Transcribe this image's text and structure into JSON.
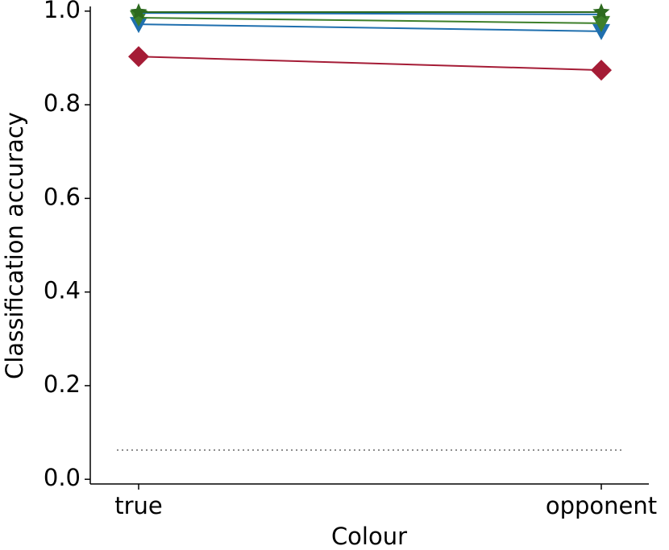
{
  "chart_data": {
    "type": "line",
    "xlabel": "Colour",
    "ylabel": "Classification accuracy",
    "categories": [
      "true",
      "opponent"
    ],
    "series": [
      {
        "color": "#a51c36",
        "marker": "diamond",
        "values": [
          0.903,
          0.874
        ]
      },
      {
        "color": "#1f6fae",
        "marker": "triangle-down",
        "values": [
          0.972,
          0.957
        ]
      },
      {
        "color": "#3d7f2a",
        "marker": "triangle-down",
        "values": [
          0.986,
          0.974
        ]
      },
      {
        "color": "#1f6fae",
        "marker": "none",
        "values": [
          0.996,
          0.993
        ]
      },
      {
        "color": "#2d6a1f",
        "marker": "star",
        "values": [
          0.998,
          0.998
        ]
      }
    ],
    "reference_line": {
      "value": 0.0625,
      "color": "#888888",
      "style": "dotted"
    },
    "ylim": [
      -0.01,
      1.01
    ],
    "yticks": [
      {
        "value": 0,
        "label": "0.0"
      },
      0.2,
      0.4,
      0.6,
      0.8,
      {
        "value": 1,
        "label": "1.0"
      }
    ]
  }
}
